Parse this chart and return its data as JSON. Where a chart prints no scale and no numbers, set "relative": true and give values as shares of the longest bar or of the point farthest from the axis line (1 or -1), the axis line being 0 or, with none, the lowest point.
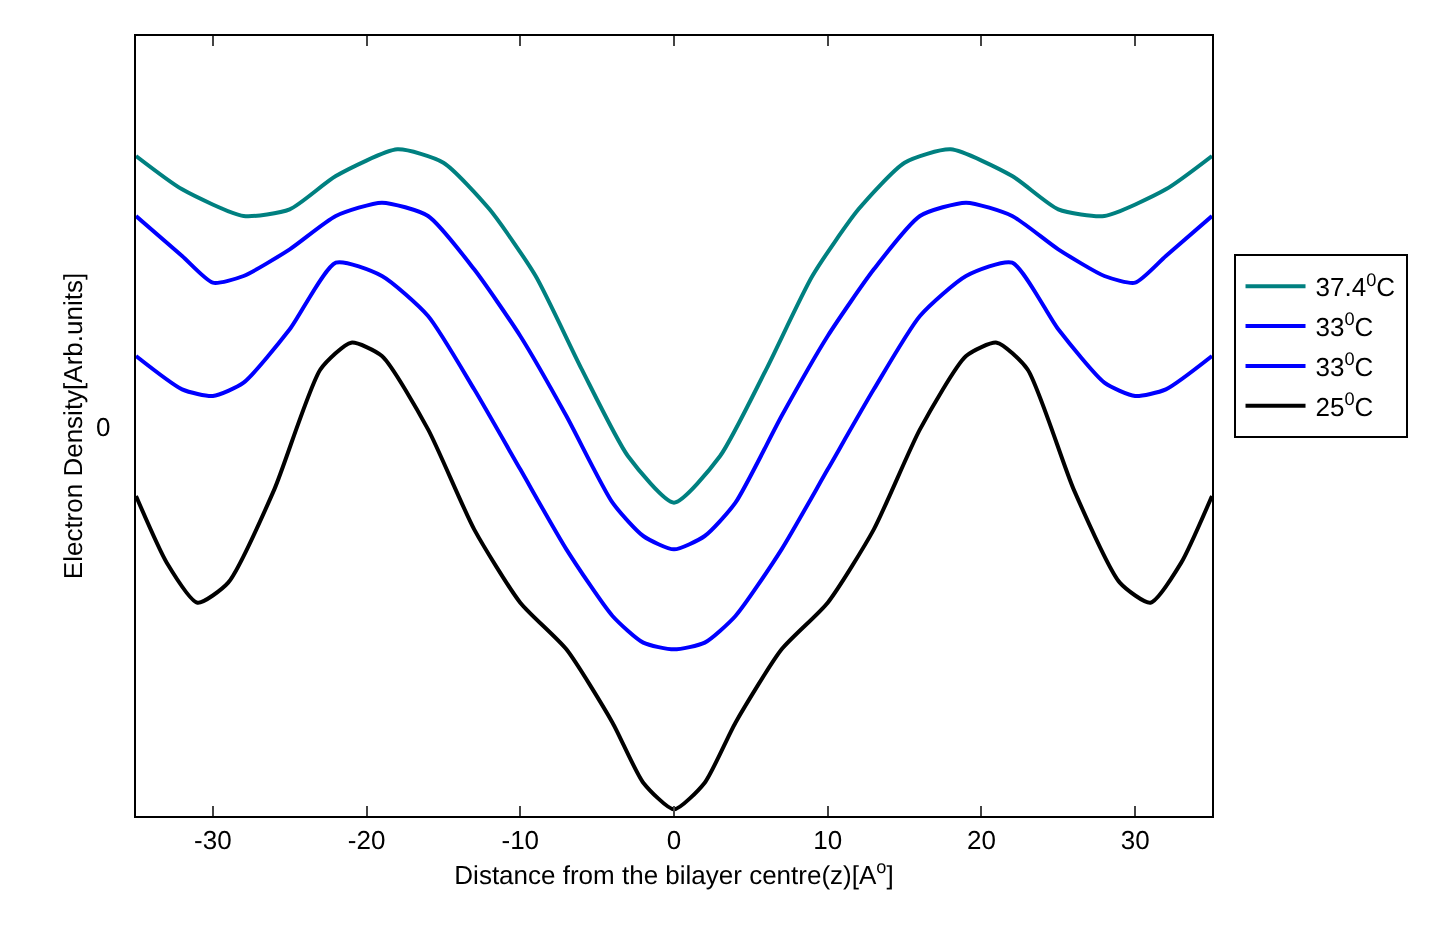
{
  "chart_data": {
    "type": "line",
    "relative": true,
    "xlabel": "Distance from the bilayer centre(z)[A$^{o}$]",
    "ylabel": "Electron Density[Arb.units]",
    "xlim": [
      -35,
      35
    ],
    "xticks": [
      -30,
      -20,
      -10,
      0,
      10,
      20,
      30
    ],
    "grid": false,
    "legend": "right",
    "line_style": "solid",
    "marker": "none",
    "annotations": [
      "0"
    ],
    "series": [
      {
        "name": "37.4$^{0}$C",
        "color": "#008080",
        "x": [
          -35,
          -32,
          -28,
          -25,
          -22,
          -18,
          -15,
          -12,
          -9,
          -6,
          -3,
          0,
          3,
          6,
          9,
          12,
          15,
          18,
          22,
          25,
          28,
          32,
          35
        ],
        "values": [
          0.99,
          0.94,
          0.9,
          0.91,
          0.96,
          1,
          0.98,
          0.91,
          0.81,
          0.67,
          0.54,
          0.47,
          0.54,
          0.67,
          0.81,
          0.91,
          0.98,
          1,
          0.96,
          0.91,
          0.9,
          0.94,
          0.99
        ]
      },
      {
        "name": "33$^{0}$C",
        "color": "#0000ff",
        "x": [
          -35,
          -32,
          -30,
          -28,
          -25,
          -22,
          -19,
          -16,
          -13,
          -10,
          -7,
          -4,
          -2,
          0,
          2,
          4,
          7,
          10,
          13,
          16,
          19,
          22,
          25,
          28,
          30,
          32,
          35
        ],
        "values": [
          0.9,
          0.84,
          0.8,
          0.81,
          0.85,
          0.9,
          0.92,
          0.9,
          0.82,
          0.72,
          0.6,
          0.47,
          0.42,
          0.4,
          0.42,
          0.47,
          0.6,
          0.72,
          0.82,
          0.9,
          0.92,
          0.9,
          0.85,
          0.81,
          0.8,
          0.84,
          0.9
        ]
      },
      {
        "name": "33$^{0}$C",
        "color": "#0000ff",
        "x": [
          -35,
          -32,
          -30,
          -28,
          -25,
          -22,
          -19,
          -16,
          -13,
          -10,
          -7,
          -4,
          -2,
          0,
          2,
          4,
          7,
          10,
          13,
          16,
          19,
          22,
          25,
          28,
          30,
          32,
          35
        ],
        "values": [
          0.69,
          0.64,
          0.63,
          0.65,
          0.73,
          0.83,
          0.81,
          0.75,
          0.64,
          0.52,
          0.4,
          0.3,
          0.26,
          0.25,
          0.26,
          0.3,
          0.4,
          0.52,
          0.64,
          0.75,
          0.81,
          0.83,
          0.73,
          0.65,
          0.63,
          0.64,
          0.69
        ]
      },
      {
        "name": "25$^{0}$C",
        "color": "#000000",
        "x": [
          -35,
          -33,
          -31,
          -29,
          -26,
          -23,
          -21,
          -19,
          -16,
          -13,
          -10,
          -7,
          -4,
          -2,
          0,
          2,
          4,
          7,
          10,
          13,
          16,
          19,
          21,
          23,
          26,
          29,
          31,
          33,
          35
        ],
        "values": [
          0.48,
          0.38,
          0.32,
          0.35,
          0.49,
          0.67,
          0.71,
          0.69,
          0.58,
          0.43,
          0.32,
          0.25,
          0.14,
          0.05,
          0.01,
          0.05,
          0.14,
          0.25,
          0.32,
          0.43,
          0.58,
          0.69,
          0.71,
          0.67,
          0.49,
          0.35,
          0.32,
          0.38,
          0.48
        ]
      }
    ]
  }
}
